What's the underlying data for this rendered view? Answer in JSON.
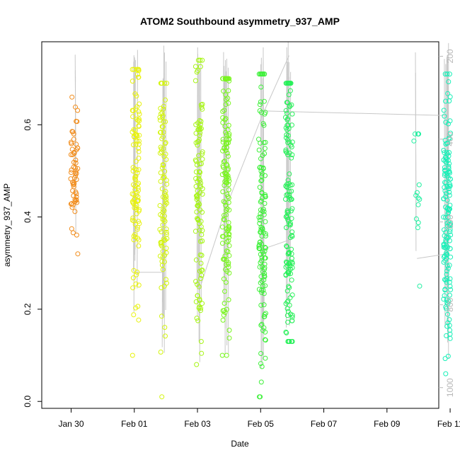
{
  "chart_data": {
    "type": "scatter",
    "title": "ATOM2 Southbound asymmetry_937_AMP",
    "xlabel": "Date",
    "ylabel": "asymmetry_937_AMP",
    "x_ticks": [
      "Jan 30",
      "Feb 01",
      "Feb 03",
      "Feb 05",
      "Feb 07",
      "Feb 09",
      "Feb 11"
    ],
    "y_ticks": [
      "0.0",
      "0.2",
      "0.4",
      "0.6"
    ],
    "y2_ticks": [
      "200",
      "400",
      "600",
      "800",
      "1000"
    ],
    "xlim_days": [
      -2.93,
      9.64
    ],
    "ylim": [
      -0.015,
      0.78
    ],
    "y2lim": [
      1050,
      165
    ],
    "grid": false,
    "marker_outline_color": "#c8c8c8",
    "profile_line_color": "#c8c8c8",
    "series": [
      {
        "x_day": -1.9,
        "color": "#f28c1a",
        "center": 0.5,
        "spread": 0.06,
        "ymin": 0.32,
        "ymax": 0.66,
        "count": 60
      },
      {
        "x_day": 0.05,
        "color": "#e8f20c",
        "center": 0.5,
        "spread": 0.14,
        "ymin": 0.1,
        "ymax": 0.72,
        "count": 110
      },
      {
        "x_day": 0.92,
        "color": "#d4f50e",
        "center": 0.46,
        "spread": 0.14,
        "ymin": 0.01,
        "ymax": 0.69,
        "count": 100
      },
      {
        "x_day": 2.05,
        "color": "#a6f514",
        "center": 0.45,
        "spread": 0.16,
        "ymin": 0.08,
        "ymax": 0.74,
        "count": 110
      },
      {
        "x_day": 2.9,
        "color": "#78f51e",
        "center": 0.44,
        "spread": 0.17,
        "ymin": 0.1,
        "ymax": 0.7,
        "count": 140
      },
      {
        "x_day": 4.05,
        "color": "#3ef03a",
        "center": 0.4,
        "spread": 0.17,
        "ymin": 0.01,
        "ymax": 0.71,
        "count": 130
      },
      {
        "x_day": 4.9,
        "color": "#28f05a",
        "center": 0.42,
        "spread": 0.16,
        "ymin": 0.13,
        "ymax": 0.69,
        "count": 140
      },
      {
        "x_day": 8.95,
        "color": "#1ef0a0",
        "center": 0.48,
        "spread": 0.08,
        "ymin": 0.25,
        "ymax": 0.58,
        "count": 15
      },
      {
        "x_day": 9.9,
        "color": "#18f0b8",
        "center": 0.42,
        "spread": 0.16,
        "ymin": 0.06,
        "ymax": 0.71,
        "count": 150
      }
    ]
  }
}
